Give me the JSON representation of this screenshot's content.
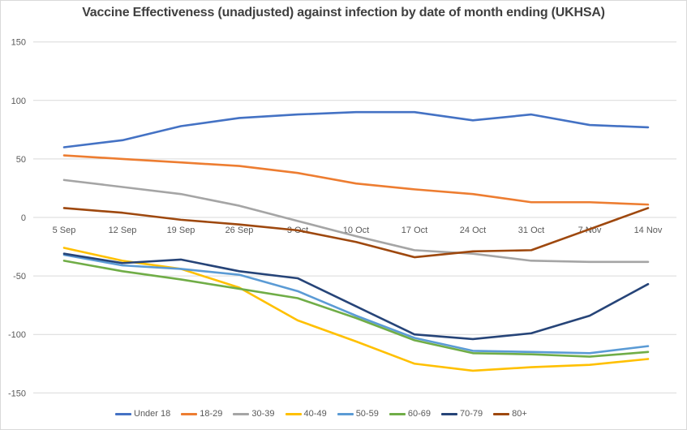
{
  "chart_data": {
    "type": "line",
    "title": "Vaccine Effectiveness (unadjusted) against infection by date of month ending (UKHSA)",
    "categories": [
      "5 Sep",
      "12 Sep",
      "19 Sep",
      "26 Sep",
      "3 Oct",
      "10 Oct",
      "17 Oct",
      "24 Oct",
      "31 Oct",
      "7 Nov",
      "14 Nov"
    ],
    "y_ticks": [
      150,
      100,
      50,
      0,
      -50,
      -100,
      -150
    ],
    "ylim": [
      -150,
      150
    ],
    "xlabel": "",
    "ylabel": "",
    "grid": "horizontal-only",
    "legend_position": "bottom",
    "series": [
      {
        "name": "Under 18",
        "color": "#4472C4",
        "values": [
          60,
          66,
          78,
          85,
          88,
          90,
          90,
          83,
          88,
          79,
          77
        ]
      },
      {
        "name": "18-29",
        "color": "#ED7D31",
        "values": [
          53,
          50,
          47,
          44,
          38,
          29,
          24,
          20,
          13,
          13,
          11
        ]
      },
      {
        "name": "30-39",
        "color": "#A5A5A5",
        "values": [
          32,
          26,
          20,
          10,
          -3,
          -16,
          -28,
          -31,
          -37,
          -38,
          -38
        ]
      },
      {
        "name": "40-49",
        "color": "#FFC000",
        "values": [
          -26,
          -37,
          -44,
          -60,
          -88,
          -106,
          -125,
          -131,
          -128,
          -126,
          -121
        ]
      },
      {
        "name": "50-59",
        "color": "#5B9BD5",
        "values": [
          -32,
          -41,
          -44,
          -49,
          -63,
          -84,
          -103,
          -114,
          -115,
          -116,
          -110
        ]
      },
      {
        "name": "60-69",
        "color": "#70AD47",
        "values": [
          -37,
          -46,
          -53,
          -61,
          -69,
          -86,
          -105,
          -116,
          -117,
          -119,
          -115
        ]
      },
      {
        "name": "70-79",
        "color": "#264478",
        "values": [
          -31,
          -39,
          -36,
          -46,
          -52,
          -76,
          -100,
          -104,
          -99,
          -84,
          -57
        ]
      },
      {
        "name": "80+",
        "color": "#9E480E",
        "values": [
          8,
          4,
          -2,
          -6,
          -11,
          -21,
          -34,
          -29,
          -28,
          -10,
          8
        ]
      }
    ]
  },
  "colors": {
    "gridline": "#D9D9D9",
    "axis_text": "#595959",
    "title_text": "#404040",
    "border": "#D9D9D9",
    "background": "#FFFFFF"
  }
}
